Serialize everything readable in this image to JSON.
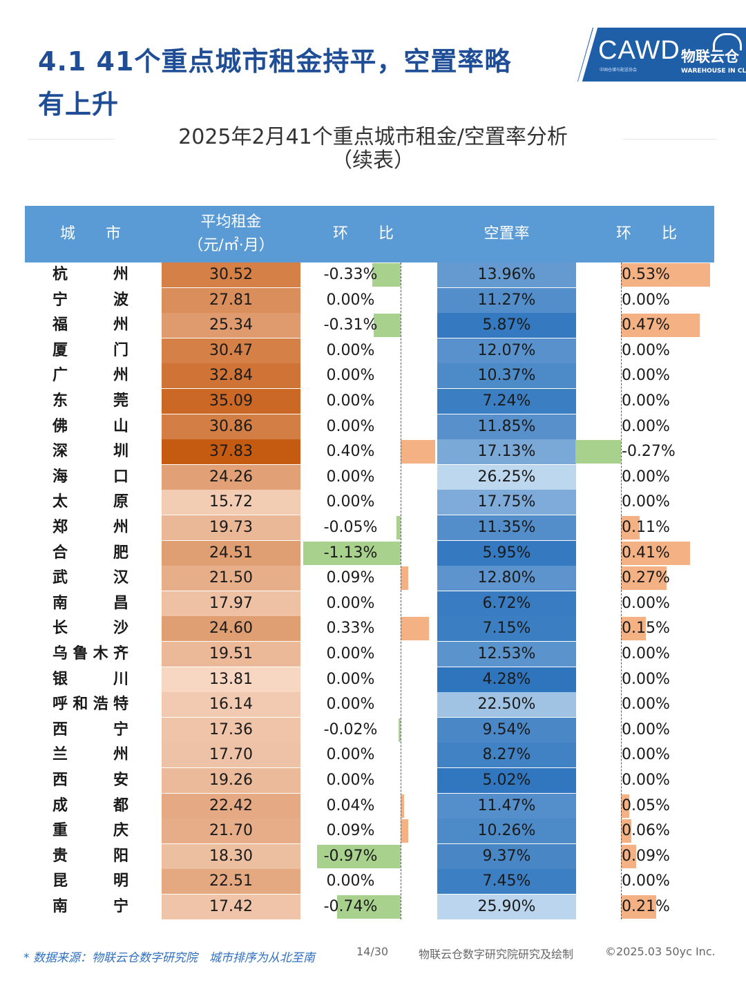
{
  "heading": {
    "line1": "4.1 41个重点城市租金持平，空置率略",
    "line2": "有上升"
  },
  "logo": {
    "cawd": "CAWD",
    "cawd_sub": "中国仓储与配送协会",
    "brand": "物联云仓",
    "brand_sub": "WAREHOUSE IN CLOUD"
  },
  "subtitle": {
    "line1": "2025年2月41个重点城市租金/空置率分析",
    "line2": "（续表）"
  },
  "table_header": {
    "city": "城　　市",
    "rent_line1": "平均租金",
    "rent_line2": "（元/㎡·月）",
    "rent_change": "环　　比",
    "vacancy": "空置率",
    "vacancy_change": "环　　比"
  },
  "colors": {
    "header_bg": "#5b9bd5",
    "positive_bar": "#f4b183",
    "negative_bar": "#a9d18e",
    "title": "#1f4e96"
  },
  "chart_data": {
    "type": "table",
    "columns": [
      "城市",
      "平均租金（元/㎡·月）",
      "环比",
      "空置率",
      "环比"
    ],
    "rows": [
      {
        "city": "杭州",
        "rent": "30.52",
        "rent_change": "-0.33%",
        "vacancy": "13.96%",
        "vacancy_change": "0.53%"
      },
      {
        "city": "宁波",
        "rent": "27.81",
        "rent_change": "0.00%",
        "vacancy": "11.27%",
        "vacancy_change": "0.00%"
      },
      {
        "city": "福州",
        "rent": "25.34",
        "rent_change": "-0.31%",
        "vacancy": "5.87%",
        "vacancy_change": "0.47%"
      },
      {
        "city": "厦门",
        "rent": "30.47",
        "rent_change": "0.00%",
        "vacancy": "12.07%",
        "vacancy_change": "0.00%"
      },
      {
        "city": "广州",
        "rent": "32.84",
        "rent_change": "0.00%",
        "vacancy": "10.37%",
        "vacancy_change": "0.00%"
      },
      {
        "city": "东莞",
        "rent": "35.09",
        "rent_change": "0.00%",
        "vacancy": "7.24%",
        "vacancy_change": "0.00%"
      },
      {
        "city": "佛山",
        "rent": "30.86",
        "rent_change": "0.00%",
        "vacancy": "11.85%",
        "vacancy_change": "0.00%"
      },
      {
        "city": "深圳",
        "rent": "37.83",
        "rent_change": "0.40%",
        "vacancy": "17.13%",
        "vacancy_change": "-0.27%"
      },
      {
        "city": "海口",
        "rent": "24.26",
        "rent_change": "0.00%",
        "vacancy": "26.25%",
        "vacancy_change": "0.00%"
      },
      {
        "city": "太原",
        "rent": "15.72",
        "rent_change": "0.00%",
        "vacancy": "17.75%",
        "vacancy_change": "0.00%"
      },
      {
        "city": "郑州",
        "rent": "19.73",
        "rent_change": "-0.05%",
        "vacancy": "11.35%",
        "vacancy_change": "0.11%"
      },
      {
        "city": "合肥",
        "rent": "24.51",
        "rent_change": "-1.13%",
        "vacancy": "5.95%",
        "vacancy_change": "0.41%"
      },
      {
        "city": "武汉",
        "rent": "21.50",
        "rent_change": "0.09%",
        "vacancy": "12.80%",
        "vacancy_change": "0.27%"
      },
      {
        "city": "南昌",
        "rent": "17.97",
        "rent_change": "0.00%",
        "vacancy": "6.72%",
        "vacancy_change": "0.00%"
      },
      {
        "city": "长沙",
        "rent": "24.60",
        "rent_change": "0.33%",
        "vacancy": "7.15%",
        "vacancy_change": "0.15%"
      },
      {
        "city": "乌鲁木齐",
        "rent": "19.51",
        "rent_change": "0.00%",
        "vacancy": "12.53%",
        "vacancy_change": "0.00%"
      },
      {
        "city": "银川",
        "rent": "13.81",
        "rent_change": "0.00%",
        "vacancy": "4.28%",
        "vacancy_change": "0.00%"
      },
      {
        "city": "呼和浩特",
        "rent": "16.14",
        "rent_change": "0.00%",
        "vacancy": "22.50%",
        "vacancy_change": "0.00%"
      },
      {
        "city": "西宁",
        "rent": "17.36",
        "rent_change": "-0.02%",
        "vacancy": "9.54%",
        "vacancy_change": "0.00%"
      },
      {
        "city": "兰州",
        "rent": "17.70",
        "rent_change": "0.00%",
        "vacancy": "8.27%",
        "vacancy_change": "0.00%"
      },
      {
        "city": "西安",
        "rent": "19.26",
        "rent_change": "0.00%",
        "vacancy": "5.02%",
        "vacancy_change": "0.00%"
      },
      {
        "city": "成都",
        "rent": "22.42",
        "rent_change": "0.04%",
        "vacancy": "11.47%",
        "vacancy_change": "0.05%"
      },
      {
        "city": "重庆",
        "rent": "21.70",
        "rent_change": "0.09%",
        "vacancy": "10.26%",
        "vacancy_change": "0.06%"
      },
      {
        "city": "贵阳",
        "rent": "18.30",
        "rent_change": "-0.97%",
        "vacancy": "9.37%",
        "vacancy_change": "0.09%"
      },
      {
        "city": "昆明",
        "rent": "22.51",
        "rent_change": "0.00%",
        "vacancy": "7.45%",
        "vacancy_change": "0.00%"
      },
      {
        "city": "南宁",
        "rent": "17.42",
        "rent_change": "-0.74%",
        "vacancy": "25.90%",
        "vacancy_change": "0.21%"
      }
    ]
  },
  "footer": {
    "source": "* 数据来源：物联云仓数字研究院　城市排序为从北至南",
    "page": "14/30",
    "org": "物联云仓数字研究院研究及绘制",
    "copyright": "©2025.03 50yc Inc."
  }
}
